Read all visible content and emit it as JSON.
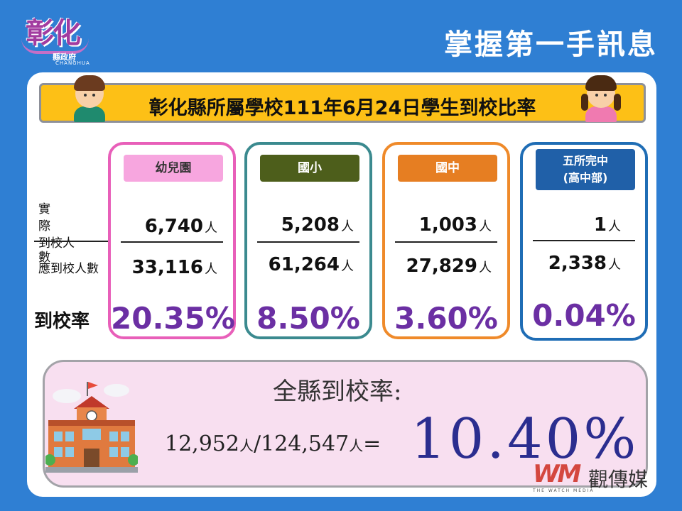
{
  "logo": {
    "main": "彰化",
    "sub": "縣政府",
    "sub2": "CHANGHUA"
  },
  "top_title": "掌握第一手訊息",
  "banner": "彰化縣所屬學校111年6月24日學生到校比率",
  "row_labels": {
    "actual_chars": [
      "實",
      "際",
      "到校人",
      "數"
    ],
    "total": "應到校人數",
    "rate": "到校率"
  },
  "cards": [
    {
      "label": "幼兒園",
      "actual": "6,740",
      "total": "33,116",
      "unit": "人",
      "rate": "20.35%",
      "border": "#e85fb9",
      "label_bg": "#f7a6df",
      "label_fg": "#333"
    },
    {
      "label": "國小",
      "actual": "5,208",
      "total": "61,264",
      "unit": "人",
      "rate": "8.50%",
      "border": "#3b8a8f",
      "label_bg": "#4d5e1b",
      "label_fg": "#fff"
    },
    {
      "label": "國中",
      "actual": "1,003",
      "total": "27,829",
      "unit": "人",
      "rate": "3.60%",
      "border": "#ef8a2a",
      "label_bg": "#e67e22",
      "label_fg": "#fff"
    },
    {
      "label_line1": "五所完中",
      "label_line2": "(高中部)",
      "actual": "1",
      "total": "2,338",
      "unit": "人",
      "rate": "0.04%",
      "border": "#1f6db5",
      "label_bg": "#2060a8",
      "label_fg": "#fff"
    }
  ],
  "summary": {
    "title": "全縣到校率:",
    "actual": "12,952",
    "total": "124,547",
    "unit": "人",
    "slash": "/",
    "equals": "=",
    "rate": "10.40%"
  },
  "brand": {
    "mark": "WM",
    "name": "觀傳媒",
    "english": "THE WATCH MEDIA"
  }
}
